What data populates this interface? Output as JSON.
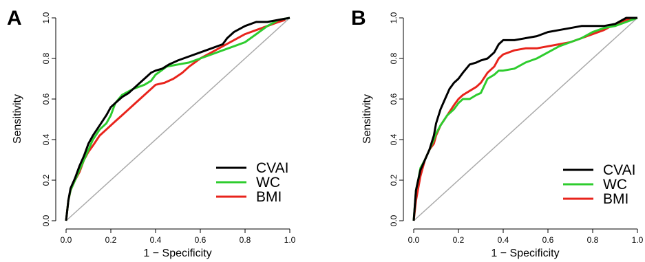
{
  "colors": {
    "CVAI": "#000000",
    "WC": "#2ecc2e",
    "BMI": "#e8241c",
    "reference": "#aaaaaa"
  },
  "chart_data": [
    {
      "type": "line",
      "panel_label": "A",
      "xlabel": "1 − Specificity",
      "ylabel": "Sensitivity",
      "xlim": [
        0,
        1
      ],
      "ylim": [
        0,
        1
      ],
      "xticks": [
        "0.0",
        "0.2",
        "0.4",
        "0.6",
        "0.8",
        "1.0"
      ],
      "yticks": [
        "0.0",
        "0.2",
        "0.4",
        "0.6",
        "0.8",
        "1.0"
      ],
      "grid": false,
      "legend_position": "bottom-right",
      "reference_line": [
        [
          0,
          0
        ],
        [
          1,
          1
        ]
      ],
      "series": [
        {
          "name": "CVAI",
          "x": [
            0,
            0.01,
            0.02,
            0.04,
            0.06,
            0.08,
            0.1,
            0.12,
            0.15,
            0.18,
            0.2,
            0.22,
            0.25,
            0.28,
            0.3,
            0.33,
            0.36,
            0.38,
            0.4,
            0.43,
            0.46,
            0.5,
            0.55,
            0.6,
            0.65,
            0.7,
            0.72,
            0.75,
            0.8,
            0.85,
            0.9,
            0.95,
            1
          ],
          "y": [
            0,
            0.1,
            0.16,
            0.21,
            0.27,
            0.32,
            0.38,
            0.42,
            0.47,
            0.52,
            0.56,
            0.58,
            0.61,
            0.63,
            0.65,
            0.68,
            0.71,
            0.73,
            0.74,
            0.75,
            0.77,
            0.79,
            0.81,
            0.83,
            0.85,
            0.87,
            0.9,
            0.93,
            0.96,
            0.98,
            0.98,
            0.99,
            1
          ]
        },
        {
          "name": "WC",
          "x": [
            0,
            0.01,
            0.02,
            0.04,
            0.06,
            0.08,
            0.1,
            0.12,
            0.15,
            0.18,
            0.2,
            0.22,
            0.25,
            0.3,
            0.35,
            0.38,
            0.4,
            0.45,
            0.5,
            0.55,
            0.6,
            0.65,
            0.7,
            0.75,
            0.8,
            0.85,
            0.9,
            0.95,
            1
          ],
          "y": [
            0,
            0.1,
            0.15,
            0.2,
            0.25,
            0.3,
            0.35,
            0.4,
            0.45,
            0.48,
            0.52,
            0.58,
            0.62,
            0.65,
            0.67,
            0.69,
            0.72,
            0.76,
            0.77,
            0.78,
            0.8,
            0.82,
            0.84,
            0.86,
            0.88,
            0.92,
            0.96,
            0.99,
            1
          ]
        },
        {
          "name": "BMI",
          "x": [
            0,
            0.01,
            0.02,
            0.04,
            0.06,
            0.08,
            0.1,
            0.12,
            0.15,
            0.18,
            0.2,
            0.22,
            0.25,
            0.28,
            0.3,
            0.33,
            0.36,
            0.38,
            0.4,
            0.44,
            0.48,
            0.52,
            0.55,
            0.6,
            0.65,
            0.7,
            0.75,
            0.8,
            0.85,
            0.9,
            0.95,
            0.98
          ],
          "y": [
            0,
            0.1,
            0.15,
            0.2,
            0.24,
            0.3,
            0.34,
            0.37,
            0.42,
            0.45,
            0.47,
            0.49,
            0.52,
            0.55,
            0.57,
            0.6,
            0.63,
            0.65,
            0.67,
            0.68,
            0.7,
            0.73,
            0.76,
            0.8,
            0.83,
            0.86,
            0.89,
            0.92,
            0.94,
            0.96,
            0.98,
            0.99
          ]
        }
      ]
    },
    {
      "type": "line",
      "panel_label": "B",
      "xlabel": "1 − Specificity",
      "ylabel": "Sensitivity",
      "xlim": [
        0,
        1
      ],
      "ylim": [
        0,
        1
      ],
      "xticks": [
        "0.0",
        "0.2",
        "0.4",
        "0.6",
        "0.8",
        "1.0"
      ],
      "yticks": [
        "0.0",
        "0.2",
        "0.4",
        "0.6",
        "0.8",
        "1.0"
      ],
      "grid": false,
      "legend_position": "bottom-right",
      "reference_line": [
        [
          0,
          0
        ],
        [
          1,
          1
        ]
      ],
      "series": [
        {
          "name": "CVAI",
          "x": [
            0,
            0.01,
            0.02,
            0.03,
            0.05,
            0.07,
            0.09,
            0.1,
            0.12,
            0.14,
            0.16,
            0.18,
            0.2,
            0.22,
            0.25,
            0.28,
            0.3,
            0.33,
            0.36,
            0.38,
            0.4,
            0.45,
            0.5,
            0.55,
            0.6,
            0.65,
            0.7,
            0.75,
            0.8,
            0.85,
            0.9,
            0.95,
            1
          ],
          "y": [
            0,
            0.15,
            0.2,
            0.25,
            0.3,
            0.35,
            0.42,
            0.48,
            0.55,
            0.6,
            0.65,
            0.68,
            0.7,
            0.73,
            0.77,
            0.78,
            0.79,
            0.8,
            0.83,
            0.87,
            0.89,
            0.89,
            0.9,
            0.91,
            0.93,
            0.94,
            0.95,
            0.96,
            0.96,
            0.96,
            0.97,
            1,
            1
          ]
        },
        {
          "name": "WC",
          "x": [
            0,
            0.01,
            0.02,
            0.03,
            0.05,
            0.07,
            0.09,
            0.1,
            0.12,
            0.15,
            0.18,
            0.2,
            0.22,
            0.25,
            0.28,
            0.3,
            0.33,
            0.36,
            0.38,
            0.4,
            0.45,
            0.5,
            0.55,
            0.6,
            0.65,
            0.7,
            0.75,
            0.8,
            0.85,
            0.9,
            0.95,
            1
          ],
          "y": [
            0,
            0.15,
            0.2,
            0.26,
            0.3,
            0.35,
            0.4,
            0.43,
            0.47,
            0.52,
            0.55,
            0.58,
            0.6,
            0.6,
            0.62,
            0.63,
            0.7,
            0.72,
            0.74,
            0.74,
            0.75,
            0.78,
            0.8,
            0.83,
            0.86,
            0.88,
            0.9,
            0.93,
            0.95,
            0.96,
            0.98,
            1
          ]
        },
        {
          "name": "BMI",
          "x": [
            0,
            0.01,
            0.02,
            0.03,
            0.05,
            0.07,
            0.09,
            0.1,
            0.12,
            0.15,
            0.18,
            0.2,
            0.22,
            0.25,
            0.28,
            0.3,
            0.33,
            0.36,
            0.38,
            0.4,
            0.45,
            0.5,
            0.55,
            0.6,
            0.65,
            0.7,
            0.75,
            0.8,
            0.85,
            0.9,
            0.95,
            1
          ],
          "y": [
            0,
            0.1,
            0.16,
            0.22,
            0.3,
            0.35,
            0.38,
            0.42,
            0.47,
            0.52,
            0.57,
            0.6,
            0.62,
            0.64,
            0.66,
            0.68,
            0.73,
            0.76,
            0.8,
            0.82,
            0.84,
            0.85,
            0.85,
            0.86,
            0.87,
            0.88,
            0.9,
            0.92,
            0.94,
            0.97,
            0.99,
            1
          ]
        }
      ]
    }
  ]
}
